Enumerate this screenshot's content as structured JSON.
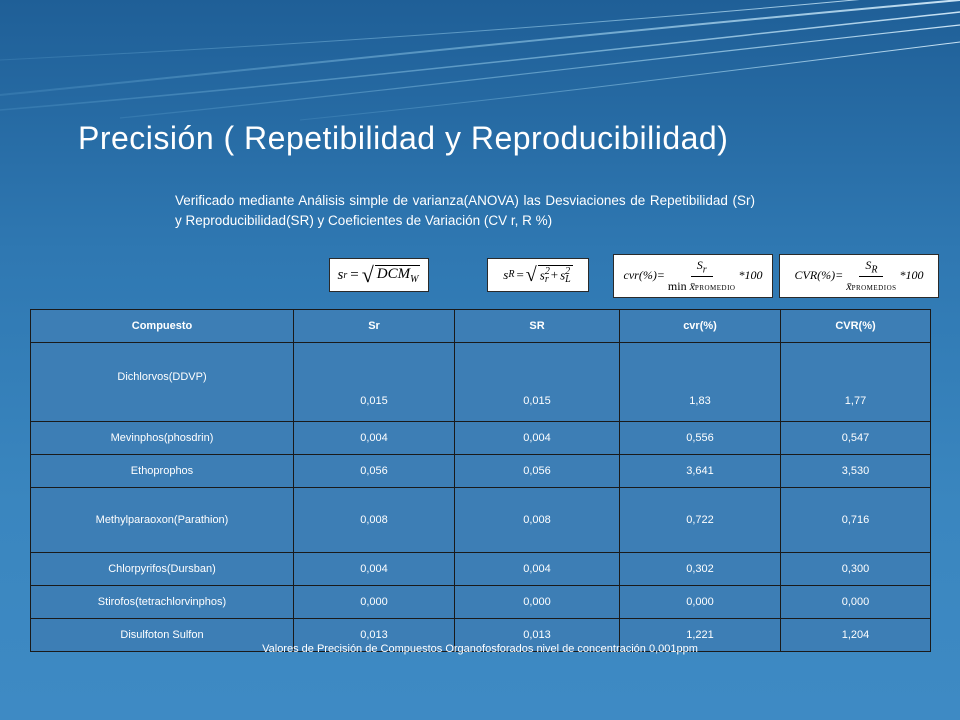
{
  "slide": {
    "title": "Precisión ( Repetibilidad y Reproducibilidad)",
    "subtitle": "Verificado mediante Análisis simple de varianza(ANOVA) las Desviaciones de Repetibilidad (Sr) y Reproducibilidad(SR) y Coeficientes de Variación (CV r, R %)",
    "caption": "Valores de Precisión de Compuestos Organofosforados nivel de concentración 0,001ppm"
  },
  "formulas": {
    "sr": {
      "lhs": "s",
      "lhs_sub": "r",
      "eq": "=",
      "radicand": "DCM",
      "radicand_sub": "W"
    },
    "sR": {
      "lhs": "s",
      "lhs_sub": "R",
      "eq": "=",
      "t1": "s",
      "t1_sub": "r",
      "t1_sup": "2",
      "plus": "+",
      "t2": "s",
      "t2_sub": "L",
      "t2_sup": "2"
    },
    "cvr": {
      "lhs": "cvr(%)=",
      "num": "S",
      "num_sub": "r",
      "den_pre": "min",
      "den_var": "x̄",
      "den_note": "PROMEDIO",
      "tail": "*100"
    },
    "CVR": {
      "lhs": "CVR(%)=",
      "num": "S",
      "num_sub": "R",
      "den_var": "x̄",
      "den_note": "PROMEDIOS",
      "tail": "*100"
    }
  },
  "table": {
    "headers": [
      "Compuesto",
      "Sr",
      "SR",
      "cvr(%)",
      "CVR(%)"
    ],
    "rows": [
      [
        "Dichlorvos(DDVP)",
        "0,015",
        "0,015",
        "1,83",
        "1,77"
      ],
      [
        "Mevinphos(phosdrin)",
        "0,004",
        "0,004",
        "0,556",
        "0,547"
      ],
      [
        "Ethoprophos",
        "0,056",
        "0,056",
        "3,641",
        "3,530"
      ],
      [
        "Methylparaoxon(Parathion)",
        "0,008",
        "0,008",
        "0,722",
        "0,716"
      ],
      [
        "Chlorpyrifos(Dursban)",
        "0,004",
        "0,004",
        "0,302",
        "0,300"
      ],
      [
        "Stirofos(tetrachlorvinphos)",
        "0,000",
        "0,000",
        "0,000",
        "0,000"
      ],
      [
        "Disulfoton Sulfon",
        "0,013",
        "0,013",
        "1,221",
        "1,204"
      ]
    ]
  }
}
